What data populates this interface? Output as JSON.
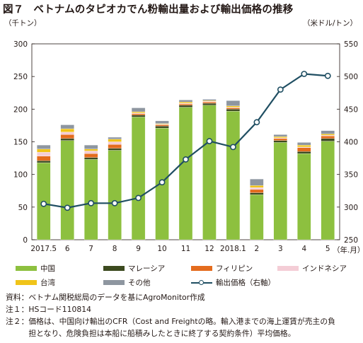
{
  "title": {
    "figure_no": "図７",
    "text": "ベトナムのタピオカでん粉輸出量および輸出価格の推移"
  },
  "units": {
    "left": "（千トン）",
    "right": "（米ドル/トン）",
    "x": "（年.月）"
  },
  "chart_data": {
    "type": "bar",
    "stacked": true,
    "categories": [
      "2017.5",
      "6",
      "7",
      "8",
      "9",
      "10",
      "11",
      "12",
      "2018.1",
      "2",
      "3",
      "4",
      "5"
    ],
    "y_left": {
      "min": 0,
      "max": 300,
      "ticks": [
        0,
        50,
        100,
        150,
        200,
        250,
        300
      ]
    },
    "y_right": {
      "min": 250,
      "max": 550,
      "ticks": [
        250,
        300,
        350,
        400,
        450,
        500,
        550
      ]
    },
    "grid": false,
    "legend": "bottom",
    "series": [
      {
        "name": "中国",
        "color": "#8dc03f",
        "values": [
          118,
          152,
          123,
          137,
          188,
          171,
          203,
          206,
          197,
          69,
          149,
          132,
          151
        ]
      },
      {
        "name": "マレーシア",
        "color": "#3c4a1f",
        "values": [
          3,
          3,
          3,
          3,
          3,
          3,
          3,
          3,
          3,
          3,
          3,
          3,
          4
        ]
      },
      {
        "name": "フィリピン",
        "color": "#e46c1e",
        "values": [
          7,
          6,
          6,
          6,
          2,
          2,
          2,
          2,
          2,
          5,
          3,
          6,
          4
        ]
      },
      {
        "name": "インドネシア",
        "color": "#f4cdd6",
        "values": [
          6,
          4,
          4,
          4,
          1,
          1,
          1,
          1,
          1,
          3,
          1,
          1,
          1
        ]
      },
      {
        "name": "台湾",
        "color": "#f0c419",
        "values": [
          5,
          5,
          3,
          4,
          2,
          1,
          2,
          1,
          2,
          3,
          2,
          3,
          2
        ]
      },
      {
        "name": "その他",
        "color": "#8e96a0",
        "values": [
          6,
          6,
          6,
          3,
          6,
          4,
          3,
          2,
          8,
          10,
          3,
          4,
          5
        ]
      }
    ],
    "line": {
      "name": "輸出価格（右軸）",
      "color": "#1f4e62",
      "axis": "right",
      "values": [
        305,
        299,
        306,
        306,
        314,
        338,
        373,
        401,
        392,
        430,
        480,
        504,
        501
      ]
    }
  },
  "notes": [
    {
      "label": "資料：",
      "text": "ベトナム関税総局のデータを基にAgroMonitor作成"
    },
    {
      "label": "注１：",
      "text": "HSコード110814"
    },
    {
      "label": "注２：",
      "text": "価格は、中国向け輸出のCFR（Cost and Freightの略。輸入港までの海上運賃が売主の負担となり、危険負担は本船に船積みしたときに終了する契約条件）平均価格。"
    }
  ]
}
